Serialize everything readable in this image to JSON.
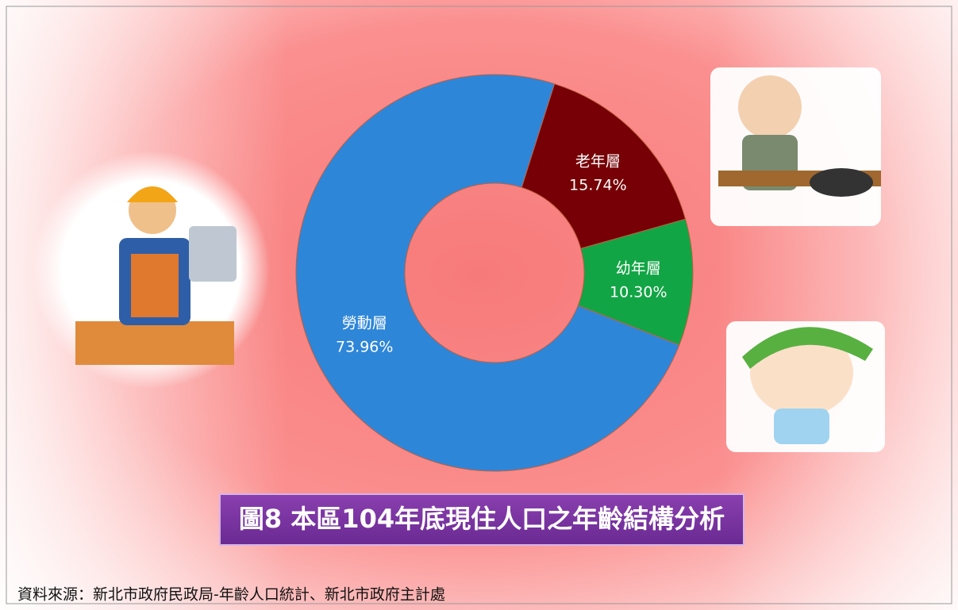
{
  "chart_data": {
    "type": "donut",
    "title": "圖8  本區104年底現住人口之年齡結構分析",
    "source": "資料來源：新北市政府民政局-年齡人口統計、新北市政府主計處",
    "categories": [
      "老年層",
      "幼年層",
      "勞動層"
    ],
    "values": [
      15.74,
      10.3,
      73.96
    ],
    "value_labels": [
      "15.74%",
      "10.30%",
      "73.96%"
    ],
    "colors": [
      "#760005",
      "#12a545",
      "#2e86d8"
    ]
  }
}
